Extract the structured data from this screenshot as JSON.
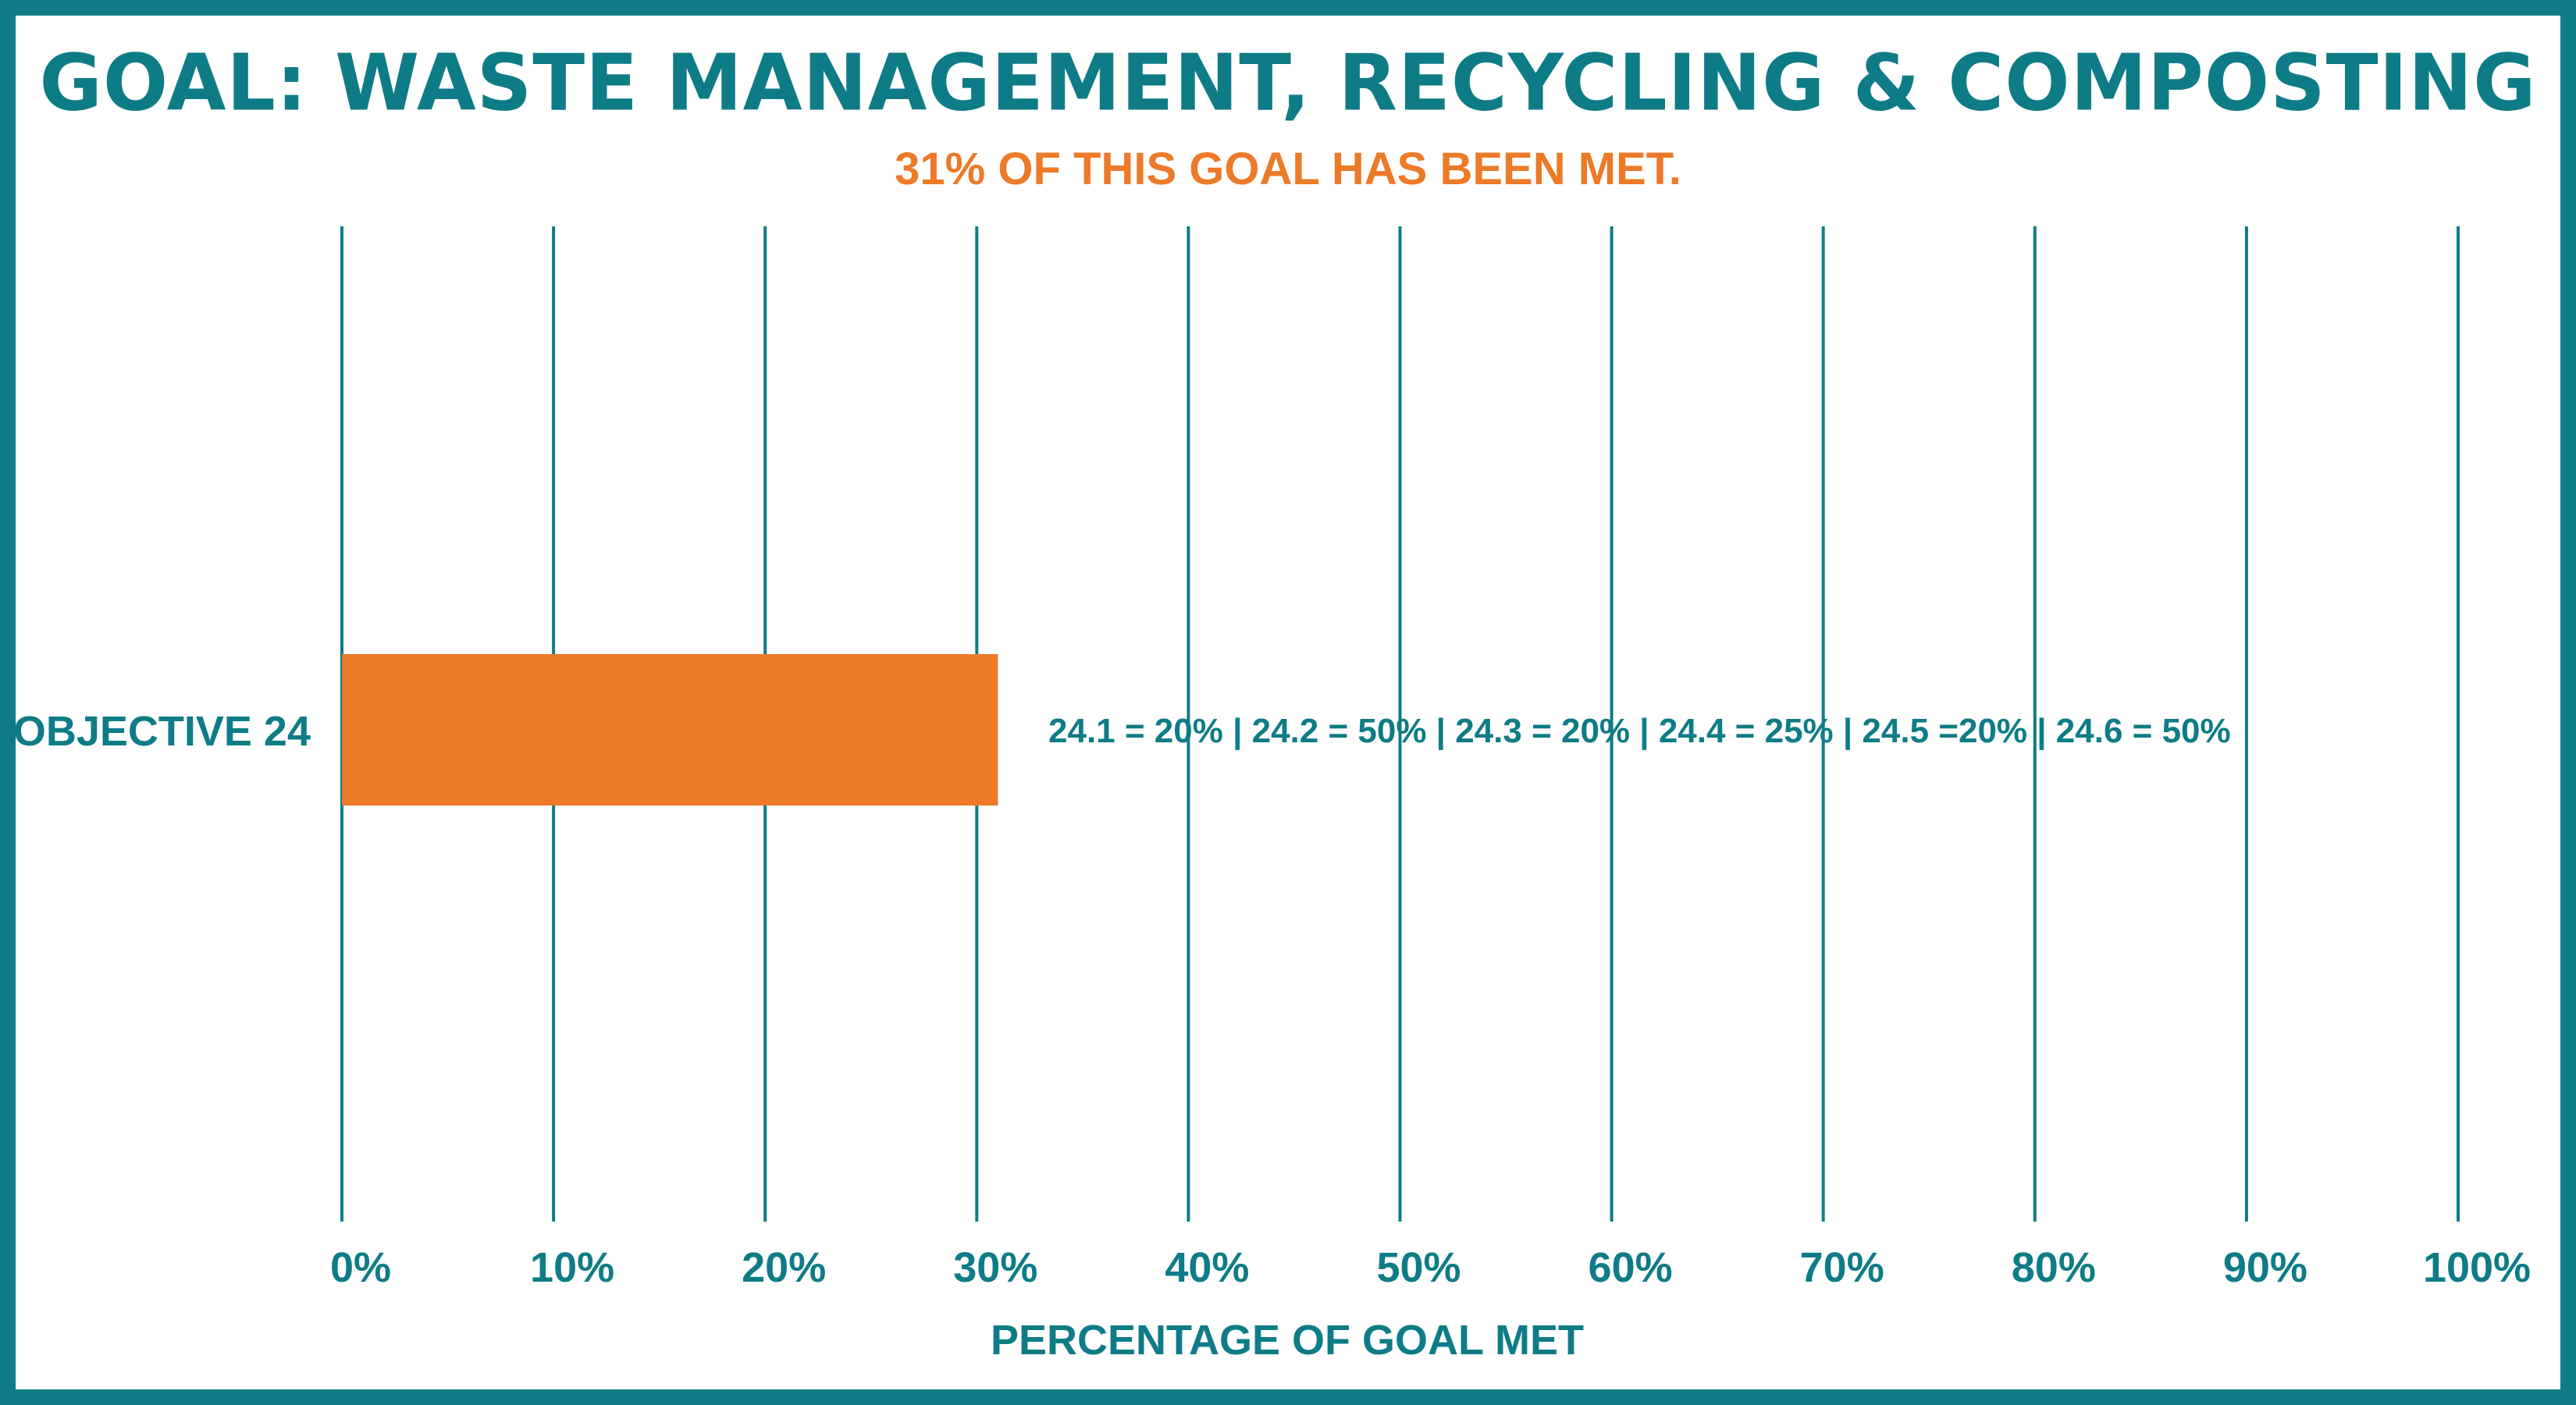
{
  "title": "GOAL: WASTE MANAGEMENT, RECYCLING & COMPOSTING",
  "subtitle": "31% OF THIS GOAL HAS BEEN MET.",
  "colors": {
    "primary": "#0e7c86",
    "accent": "#ec7a28",
    "background": "#ffffff"
  },
  "chart_data": {
    "type": "bar",
    "orientation": "horizontal",
    "categories": [
      "OBJECTIVE 24"
    ],
    "values": [
      31
    ],
    "xlabel": "PERCENTAGE OF GOAL MET",
    "ylabel": "",
    "xlim": [
      0,
      100
    ],
    "x_ticks": [
      0,
      10,
      20,
      30,
      40,
      50,
      60,
      70,
      80,
      90,
      100
    ],
    "x_tick_labels": [
      "0%",
      "10%",
      "20%",
      "30%",
      "40%",
      "50%",
      "60%",
      "70%",
      "80%",
      "90%",
      "100%"
    ],
    "grid": true,
    "annotation": "24.1 = 20% | 24.2 = 50% | 24.3 = 20% | 24.4 = 25% | 24.5 =20% | 24.6 = 50%"
  }
}
